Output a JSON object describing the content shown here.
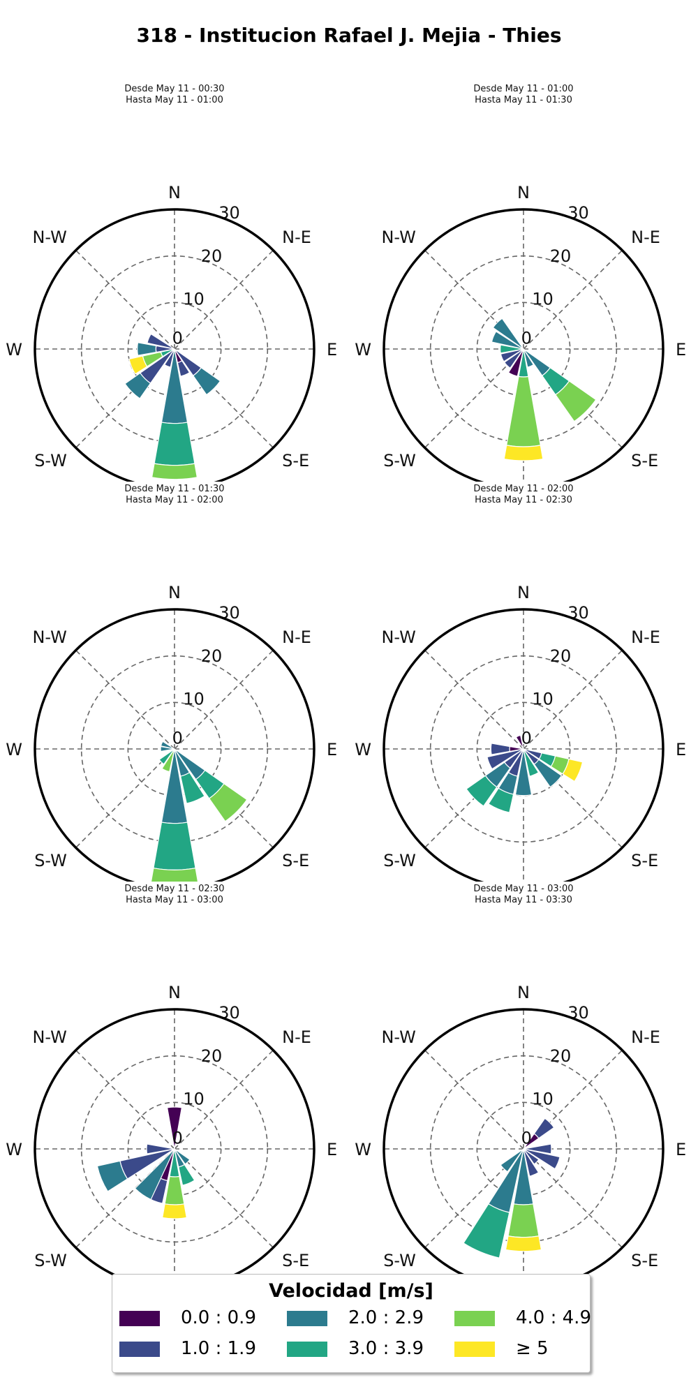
{
  "title": "318 - Institucion Rafael J. Mejia - Thies",
  "legend": {
    "title": "Velocidad [m/s]",
    "bins": [
      {
        "label": "0.0 : 0.9",
        "color": "#440154"
      },
      {
        "label": "1.0 : 1.9",
        "color": "#3b4a8a"
      },
      {
        "label": "2.0 : 2.9",
        "color": "#2c7b8e"
      },
      {
        "label": "3.0 : 3.9",
        "color": "#22a684"
      },
      {
        "label": "4.0 : 4.9",
        "color": "#7ad151"
      },
      {
        "label": "≥ 5",
        "color": "#fde725"
      }
    ]
  },
  "directions": [
    "N",
    "N-E",
    "E",
    "S-E",
    "S",
    "S-W",
    "W",
    "N-W"
  ],
  "radial_ticks": [
    "0",
    "10",
    "20",
    "30"
  ],
  "chart_data": [
    {
      "type": "windrose",
      "subtitle_line1": "Desde May 11 - 00:30",
      "subtitle_line2": "Hasta May 11 - 01:00",
      "rmax": 30,
      "sectors": [
        {
          "dir": 157.5,
          "stack": [
            3,
            3,
            0,
            0,
            0,
            0
          ]
        },
        {
          "dir": 180,
          "stack": [
            0,
            0,
            16,
            9,
            3,
            0
          ]
        },
        {
          "dir": 202.5,
          "stack": [
            0,
            4,
            0,
            0,
            0,
            0
          ]
        },
        {
          "dir": 225,
          "stack": [
            0,
            9,
            4,
            0,
            0,
            0
          ]
        },
        {
          "dir": 247.5,
          "stack": [
            0,
            0,
            0,
            3,
            4,
            3
          ]
        },
        {
          "dir": 270,
          "stack": [
            0,
            4,
            4,
            0,
            0,
            0
          ]
        },
        {
          "dir": 292.5,
          "stack": [
            0,
            6,
            0,
            0,
            0,
            0
          ]
        },
        {
          "dir": 135,
          "stack": [
            0,
            7,
            5,
            0,
            0,
            0
          ]
        }
      ]
    },
    {
      "type": "windrose",
      "subtitle_line1": "Desde May 11 - 01:00",
      "subtitle_line2": "Hasta May 11 - 01:30",
      "rmax": 30,
      "sectors": [
        {
          "dir": 135,
          "stack": [
            0,
            0,
            7,
            5,
            7,
            0
          ]
        },
        {
          "dir": 157.5,
          "stack": [
            0,
            0,
            4,
            0,
            0,
            0
          ]
        },
        {
          "dir": 180,
          "stack": [
            0,
            0,
            0,
            6,
            15,
            3
          ]
        },
        {
          "dir": 202.5,
          "stack": [
            6,
            0,
            0,
            0,
            0,
            0
          ]
        },
        {
          "dir": 225,
          "stack": [
            0,
            5,
            0,
            0,
            0,
            0
          ]
        },
        {
          "dir": 247.5,
          "stack": [
            0,
            5,
            0,
            0,
            0,
            0
          ]
        },
        {
          "dir": 270,
          "stack": [
            0,
            0,
            0,
            5,
            0,
            0
          ]
        },
        {
          "dir": 292.5,
          "stack": [
            0,
            0,
            7,
            0,
            0,
            0
          ]
        },
        {
          "dir": 315,
          "stack": [
            0,
            0,
            8,
            0,
            0,
            0
          ]
        }
      ]
    },
    {
      "type": "windrose",
      "subtitle_line1": "Desde May 11 - 01:30",
      "subtitle_line2": "Hasta May 11 - 02:00",
      "rmax": 30,
      "sectors": [
        {
          "dir": 135,
          "stack": [
            0,
            0,
            8,
            5,
            6,
            0
          ]
        },
        {
          "dir": 157.5,
          "stack": [
            0,
            0,
            6,
            6,
            0,
            0
          ]
        },
        {
          "dir": 180,
          "stack": [
            0,
            0,
            16,
            10,
            3,
            0
          ]
        },
        {
          "dir": 202.5,
          "stack": [
            0,
            0,
            0,
            0,
            5,
            0
          ]
        },
        {
          "dir": 225,
          "stack": [
            0,
            0,
            0,
            4,
            0,
            0
          ]
        },
        {
          "dir": 270,
          "stack": [
            0,
            0,
            3,
            0,
            0,
            0
          ]
        },
        {
          "dir": 292.5,
          "stack": [
            0,
            0,
            3,
            0,
            0,
            0
          ]
        }
      ]
    },
    {
      "type": "windrose",
      "subtitle_line1": "Desde May 11 - 02:00",
      "subtitle_line2": "Hasta May 11 - 02:30",
      "rmax": 30,
      "sectors": [
        {
          "dir": 337.5,
          "stack": [
            3,
            0,
            0,
            0,
            0,
            0
          ]
        },
        {
          "dir": 112.5,
          "stack": [
            0,
            4,
            0,
            3,
            3,
            3
          ]
        },
        {
          "dir": 135,
          "stack": [
            0,
            4,
            6,
            0,
            0,
            0
          ]
        },
        {
          "dir": 157.5,
          "stack": [
            0,
            0,
            0,
            6,
            0,
            0
          ]
        },
        {
          "dir": 180,
          "stack": [
            0,
            0,
            10,
            0,
            0,
            0
          ]
        },
        {
          "dir": 202.5,
          "stack": [
            0,
            6,
            4,
            4,
            0,
            0
          ]
        },
        {
          "dir": 225,
          "stack": [
            0,
            5,
            5,
            5,
            0,
            0
          ]
        },
        {
          "dir": 247.5,
          "stack": [
            0,
            8,
            0,
            0,
            0,
            0
          ]
        },
        {
          "dir": 270,
          "stack": [
            3,
            4,
            0,
            0,
            0,
            0
          ]
        }
      ]
    },
    {
      "type": "windrose",
      "subtitle_line1": "Desde May 11 - 02:30",
      "subtitle_line2": "Hasta May 11 - 03:00",
      "rmax": 30,
      "sectors": [
        {
          "dir": 0,
          "stack": [
            9,
            0,
            0,
            0,
            0,
            0
          ]
        },
        {
          "dir": 135,
          "stack": [
            0,
            0,
            4,
            0,
            0,
            0
          ]
        },
        {
          "dir": 157.5,
          "stack": [
            0,
            0,
            4,
            4,
            0,
            0
          ]
        },
        {
          "dir": 180,
          "stack": [
            0,
            0,
            0,
            6,
            6,
            3
          ]
        },
        {
          "dir": 202.5,
          "stack": [
            7,
            5,
            0,
            0,
            0,
            0
          ]
        },
        {
          "dir": 215,
          "stack": [
            0,
            0,
            12,
            0,
            0,
            0
          ]
        },
        {
          "dir": 247.5,
          "stack": [
            0,
            12,
            5,
            0,
            0,
            0
          ]
        },
        {
          "dir": 270,
          "stack": [
            0,
            6,
            0,
            0,
            0,
            0
          ]
        }
      ]
    },
    {
      "type": "windrose",
      "subtitle_line1": "Desde May 11 - 03:00",
      "subtitle_line2": "Hasta May 11 - 03:30",
      "rmax": 30,
      "sectors": [
        {
          "dir": 45,
          "stack": [
            4,
            4,
            0,
            0,
            0,
            0
          ]
        },
        {
          "dir": 90,
          "stack": [
            0,
            6,
            0,
            0,
            0,
            0
          ]
        },
        {
          "dir": 112.5,
          "stack": [
            0,
            8,
            0,
            0,
            0,
            0
          ]
        },
        {
          "dir": 135,
          "stack": [
            0,
            4,
            0,
            0,
            0,
            0
          ]
        },
        {
          "dir": 157.5,
          "stack": [
            0,
            6,
            0,
            0,
            0,
            0
          ]
        },
        {
          "dir": 180,
          "stack": [
            0,
            0,
            12,
            0,
            7,
            3
          ]
        },
        {
          "dir": 202.5,
          "stack": [
            0,
            0,
            14,
            10,
            0,
            0
          ]
        },
        {
          "dir": 225,
          "stack": [
            0,
            0,
            6,
            0,
            0,
            0
          ]
        }
      ]
    }
  ]
}
